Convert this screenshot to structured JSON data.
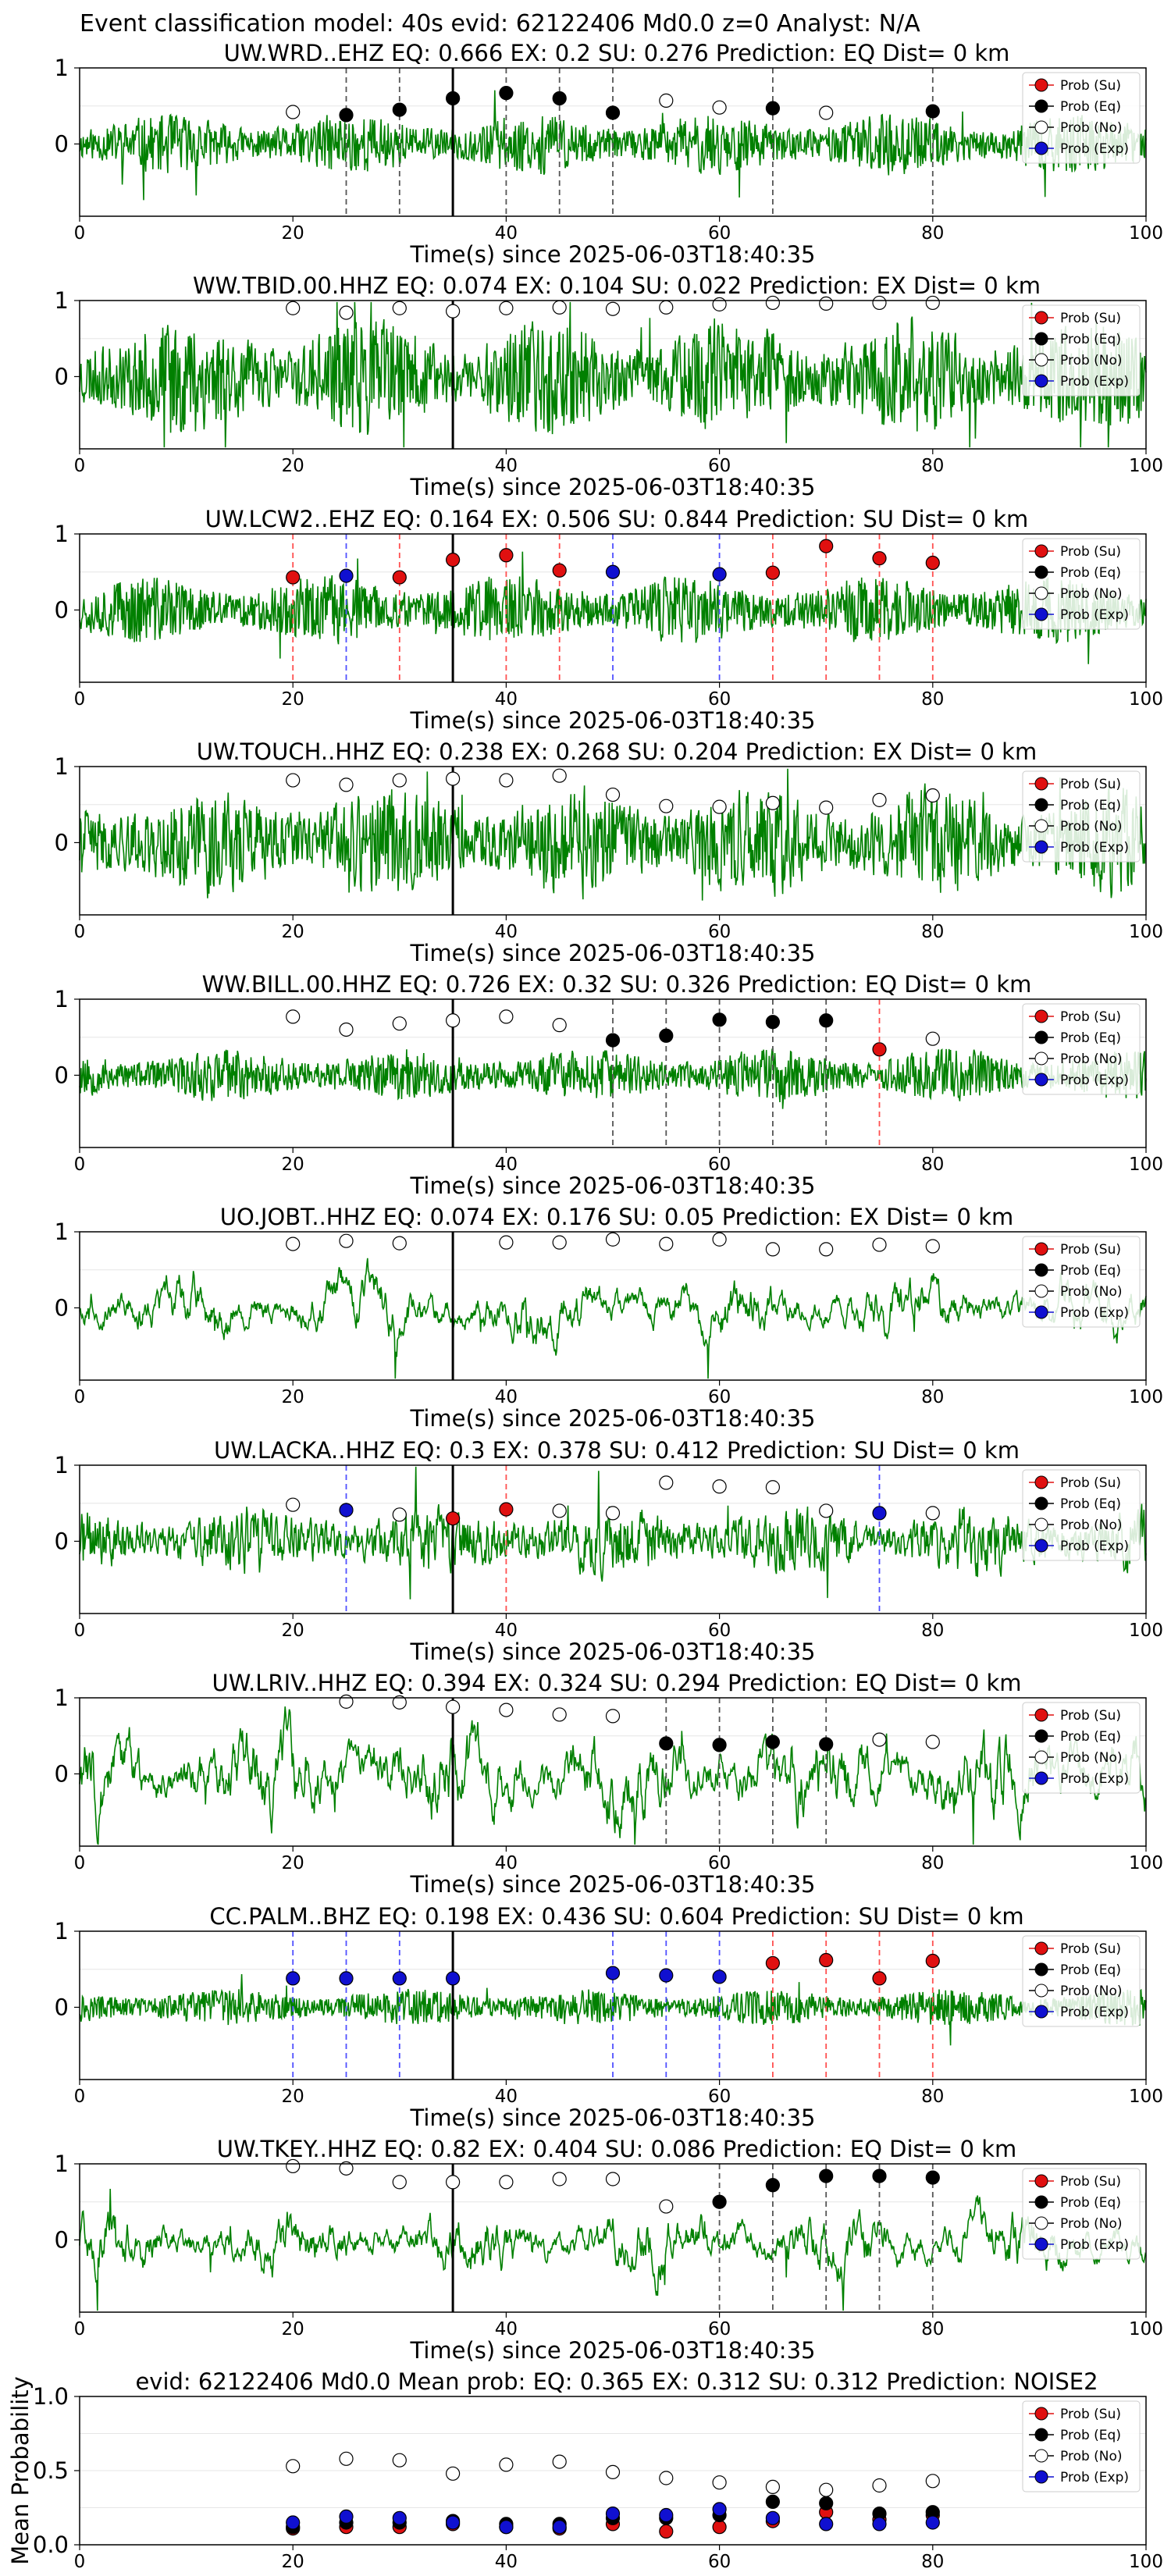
{
  "suptitle": "Event classification model: 40s evid: 62122406 Md0.0 z=0 Analyst: N/A",
  "legend_labels": [
    "Prob (Su)",
    "Prob (Eq)",
    "Prob (No)",
    "Prob (Exp)"
  ],
  "colors": {
    "su": "#e01010",
    "eq": "#000000",
    "no": "#ffffff",
    "exp": "#1010d0",
    "trace": "#008000",
    "su_line": "#ff5050",
    "eq_line": "#555555",
    "exp_line": "#5050ff"
  },
  "chart_data": [
    {
      "type": "line",
      "title": "UW.WRD..EHZ   EQ: 0.666  EX: 0.2  SU: 0.276   Prediction: EQ    Dist= 0 km",
      "xlabel": "Time(s) since 2025-06-03T18:40:35",
      "xlim": [
        0,
        100
      ],
      "xticks": [
        0,
        20,
        40,
        60,
        80,
        100
      ],
      "yticks": [
        0,
        1
      ],
      "onset": 35,
      "amp": 0.32,
      "seed": 11,
      "smooth": 0.1,
      "points": [
        [
          20,
          "no",
          0.42
        ],
        [
          25,
          "eq",
          0.38
        ],
        [
          30,
          "eq",
          0.45
        ],
        [
          35,
          "eq",
          0.6
        ],
        [
          40,
          "eq",
          0.67
        ],
        [
          45,
          "eq",
          0.6
        ],
        [
          50,
          "eq",
          0.41
        ],
        [
          55,
          "no",
          0.57
        ],
        [
          60,
          "no",
          0.48
        ],
        [
          65,
          "eq",
          0.47
        ],
        [
          70,
          "no",
          0.41
        ],
        [
          80,
          "eq",
          0.43
        ]
      ],
      "vlines": [
        [
          25,
          "eq"
        ],
        [
          30,
          "eq"
        ],
        [
          40,
          "eq"
        ],
        [
          45,
          "eq"
        ],
        [
          50,
          "eq"
        ],
        [
          65,
          "eq"
        ],
        [
          80,
          "eq"
        ]
      ]
    },
    {
      "type": "line",
      "title": "WW.TBID.00.HHZ   EQ: 0.074  EX: 0.104  SU: 0.022   Prediction: EX    Dist= 0 km",
      "xlabel": "Time(s) since 2025-06-03T18:40:35",
      "xlim": [
        0,
        100
      ],
      "xticks": [
        0,
        20,
        40,
        60,
        80,
        100
      ],
      "yticks": [
        0,
        1
      ],
      "onset": 35,
      "amp": 0.62,
      "seed": 23,
      "smooth": 0.1,
      "points": [
        [
          20,
          "no",
          0.9
        ],
        [
          25,
          "no",
          0.84
        ],
        [
          30,
          "no",
          0.9
        ],
        [
          35,
          "no",
          0.86
        ],
        [
          40,
          "no",
          0.9
        ],
        [
          45,
          "no",
          0.91
        ],
        [
          50,
          "no",
          0.89
        ],
        [
          55,
          "no",
          0.91
        ],
        [
          60,
          "no",
          0.95
        ],
        [
          65,
          "no",
          0.97
        ],
        [
          70,
          "no",
          0.96
        ],
        [
          75,
          "no",
          0.97
        ],
        [
          80,
          "no",
          0.97
        ]
      ],
      "vlines": []
    },
    {
      "type": "line",
      "title": "UW.LCW2..EHZ   EQ: 0.164  EX: 0.506  SU: 0.844   Prediction: SU    Dist= 0 km",
      "xlabel": "Time(s) since 2025-06-03T18:40:35",
      "xlim": [
        0,
        100
      ],
      "xticks": [
        0,
        20,
        40,
        60,
        80,
        100
      ],
      "yticks": [
        0,
        1
      ],
      "onset": 35,
      "amp": 0.35,
      "seed": 37,
      "smooth": 0.05,
      "points": [
        [
          20,
          "su",
          0.43
        ],
        [
          25,
          "exp",
          0.45
        ],
        [
          30,
          "su",
          0.43
        ],
        [
          35,
          "su",
          0.66
        ],
        [
          40,
          "su",
          0.72
        ],
        [
          45,
          "su",
          0.52
        ],
        [
          50,
          "exp",
          0.5
        ],
        [
          60,
          "exp",
          0.47
        ],
        [
          65,
          "su",
          0.49
        ],
        [
          70,
          "su",
          0.84
        ],
        [
          75,
          "su",
          0.68
        ],
        [
          80,
          "su",
          0.62
        ]
      ],
      "vlines": [
        [
          20,
          "su"
        ],
        [
          25,
          "exp"
        ],
        [
          30,
          "su"
        ],
        [
          40,
          "su"
        ],
        [
          45,
          "su"
        ],
        [
          50,
          "exp"
        ],
        [
          60,
          "exp"
        ],
        [
          65,
          "su"
        ],
        [
          70,
          "su"
        ],
        [
          75,
          "su"
        ],
        [
          80,
          "su"
        ]
      ]
    },
    {
      "type": "line",
      "title": "UW.TOUCH..HHZ   EQ: 0.238  EX: 0.268  SU: 0.204   Prediction: EX    Dist= 0 km",
      "xlabel": "Time(s) since 2025-06-03T18:40:35",
      "xlim": [
        0,
        100
      ],
      "xticks": [
        0,
        20,
        40,
        60,
        80,
        100
      ],
      "yticks": [
        0,
        1
      ],
      "onset": 35,
      "amp": 0.62,
      "seed": 41,
      "smooth": 0.2,
      "points": [
        [
          20,
          "no",
          0.82
        ],
        [
          25,
          "no",
          0.76
        ],
        [
          30,
          "no",
          0.82
        ],
        [
          35,
          "no",
          0.84
        ],
        [
          40,
          "no",
          0.82
        ],
        [
          45,
          "no",
          0.88
        ],
        [
          50,
          "no",
          0.63
        ],
        [
          55,
          "no",
          0.48
        ],
        [
          60,
          "no",
          0.47
        ],
        [
          65,
          "no",
          0.52
        ],
        [
          70,
          "no",
          0.46
        ],
        [
          75,
          "no",
          0.56
        ],
        [
          80,
          "no",
          0.62
        ]
      ],
      "vlines": []
    },
    {
      "type": "line",
      "title": "WW.BILL.00.HHZ   EQ: 0.726  EX: 0.32  SU: 0.326   Prediction: EQ    Dist= 0 km",
      "xlabel": "Time(s) since 2025-06-03T18:40:35",
      "xlim": [
        0,
        100
      ],
      "xticks": [
        0,
        20,
        40,
        60,
        80,
        100
      ],
      "yticks": [
        0,
        1
      ],
      "onset": 35,
      "amp": 0.28,
      "seed": 53,
      "smooth": 0.1,
      "points": [
        [
          20,
          "no",
          0.77
        ],
        [
          25,
          "no",
          0.6
        ],
        [
          30,
          "no",
          0.68
        ],
        [
          35,
          "no",
          0.72
        ],
        [
          40,
          "no",
          0.77
        ],
        [
          45,
          "no",
          0.66
        ],
        [
          50,
          "eq",
          0.46
        ],
        [
          55,
          "eq",
          0.52
        ],
        [
          60,
          "eq",
          0.73
        ],
        [
          65,
          "eq",
          0.7
        ],
        [
          70,
          "eq",
          0.72
        ],
        [
          75,
          "su",
          0.34
        ],
        [
          80,
          "no",
          0.48
        ]
      ],
      "vlines": [
        [
          50,
          "eq"
        ],
        [
          55,
          "eq"
        ],
        [
          60,
          "eq"
        ],
        [
          65,
          "eq"
        ],
        [
          70,
          "eq"
        ],
        [
          75,
          "su"
        ]
      ]
    },
    {
      "type": "line",
      "title": "UO.JOBT..HHZ   EQ: 0.074  EX: 0.176  SU: 0.05   Prediction: EX    Dist= 0 km",
      "xlabel": "Time(s) since 2025-06-03T18:40:35",
      "xlim": [
        0,
        100
      ],
      "xticks": [
        0,
        20,
        40,
        60,
        80,
        100
      ],
      "yticks": [
        0,
        1
      ],
      "onset": 35,
      "amp": 0.5,
      "seed": 67,
      "smooth": 0.9,
      "points": [
        [
          20,
          "no",
          0.84
        ],
        [
          25,
          "no",
          0.88
        ],
        [
          30,
          "no",
          0.85
        ],
        [
          40,
          "no",
          0.86
        ],
        [
          45,
          "no",
          0.86
        ],
        [
          50,
          "no",
          0.9
        ],
        [
          55,
          "no",
          0.84
        ],
        [
          60,
          "no",
          0.9
        ],
        [
          65,
          "no",
          0.77
        ],
        [
          70,
          "no",
          0.77
        ],
        [
          75,
          "no",
          0.83
        ],
        [
          80,
          "no",
          0.81
        ]
      ],
      "vlines": []
    },
    {
      "type": "line",
      "title": "UW.LACKA..HHZ   EQ: 0.3  EX: 0.378  SU: 0.412   Prediction: SU    Dist= 0 km",
      "xlabel": "Time(s) since 2025-06-03T18:40:35",
      "xlim": [
        0,
        100
      ],
      "xticks": [
        0,
        20,
        40,
        60,
        80,
        100
      ],
      "yticks": [
        0,
        1
      ],
      "onset": 35,
      "amp": 0.45,
      "seed": 71,
      "smooth": 0.4,
      "points": [
        [
          20,
          "no",
          0.48
        ],
        [
          25,
          "exp",
          0.41
        ],
        [
          30,
          "no",
          0.35
        ],
        [
          35,
          "su",
          0.3
        ],
        [
          40,
          "su",
          0.42
        ],
        [
          45,
          "no",
          0.4
        ],
        [
          50,
          "no",
          0.37
        ],
        [
          55,
          "no",
          0.77
        ],
        [
          60,
          "no",
          0.72
        ],
        [
          65,
          "no",
          0.71
        ],
        [
          70,
          "no",
          0.4
        ],
        [
          75,
          "exp",
          0.37
        ],
        [
          80,
          "no",
          0.37
        ]
      ],
      "vlines": [
        [
          25,
          "exp"
        ],
        [
          40,
          "su"
        ],
        [
          75,
          "exp"
        ]
      ]
    },
    {
      "type": "line",
      "title": "UW.LRIV..HHZ   EQ: 0.394  EX: 0.324  SU: 0.294   Prediction: EQ    Dist= 0 km",
      "xlabel": "Time(s) since 2025-06-03T18:40:35",
      "xlim": [
        0,
        100
      ],
      "xticks": [
        0,
        20,
        40,
        60,
        80,
        100
      ],
      "yticks": [
        0,
        1
      ],
      "onset": 35,
      "amp": 0.55,
      "seed": 83,
      "smooth": 0.85,
      "points": [
        [
          25,
          "no",
          0.95
        ],
        [
          30,
          "no",
          0.94
        ],
        [
          35,
          "no",
          0.88
        ],
        [
          40,
          "no",
          0.84
        ],
        [
          45,
          "no",
          0.78
        ],
        [
          50,
          "no",
          0.76
        ],
        [
          55,
          "eq",
          0.4
        ],
        [
          60,
          "eq",
          0.38
        ],
        [
          65,
          "eq",
          0.42
        ],
        [
          70,
          "eq",
          0.39
        ],
        [
          75,
          "no",
          0.45
        ],
        [
          80,
          "no",
          0.42
        ]
      ],
      "vlines": [
        [
          55,
          "eq"
        ],
        [
          60,
          "eq"
        ],
        [
          65,
          "eq"
        ],
        [
          70,
          "eq"
        ]
      ]
    },
    {
      "type": "line",
      "title": "CC.PALM..BHZ   EQ: 0.198  EX: 0.436  SU: 0.604   Prediction: SU    Dist= 0 km",
      "xlabel": "Time(s) since 2025-06-03T18:40:35",
      "xlim": [
        0,
        100
      ],
      "xticks": [
        0,
        20,
        40,
        60,
        80,
        100
      ],
      "yticks": [
        0,
        1
      ],
      "onset": 35,
      "amp": 0.18,
      "seed": 97,
      "smooth": 0.0,
      "points": [
        [
          20,
          "exp",
          0.38
        ],
        [
          25,
          "exp",
          0.38
        ],
        [
          30,
          "exp",
          0.38
        ],
        [
          35,
          "exp",
          0.38
        ],
        [
          50,
          "exp",
          0.45
        ],
        [
          55,
          "exp",
          0.42
        ],
        [
          60,
          "exp",
          0.4
        ],
        [
          65,
          "su",
          0.58
        ],
        [
          70,
          "su",
          0.62
        ],
        [
          75,
          "su",
          0.38
        ],
        [
          80,
          "su",
          0.61
        ]
      ],
      "vlines": [
        [
          20,
          "exp"
        ],
        [
          25,
          "exp"
        ],
        [
          30,
          "exp"
        ],
        [
          50,
          "exp"
        ],
        [
          55,
          "exp"
        ],
        [
          60,
          "exp"
        ],
        [
          65,
          "su"
        ],
        [
          70,
          "su"
        ],
        [
          75,
          "su"
        ],
        [
          80,
          "su"
        ]
      ]
    },
    {
      "type": "line",
      "title": "UW.TKEY..HHZ   EQ: 0.82  EX: 0.404  SU: 0.086   Prediction: EQ    Dist= 0 km",
      "xlabel": "Time(s) since 2025-06-03T18:40:35",
      "xlim": [
        0,
        100
      ],
      "xticks": [
        0,
        20,
        40,
        60,
        80,
        100
      ],
      "yticks": [
        0,
        1
      ],
      "onset": 35,
      "amp": 0.55,
      "seed": 101,
      "smooth": 0.9,
      "points": [
        [
          20,
          "no",
          0.97
        ],
        [
          25,
          "no",
          0.94
        ],
        [
          30,
          "no",
          0.76
        ],
        [
          35,
          "no",
          0.76
        ],
        [
          40,
          "no",
          0.76
        ],
        [
          45,
          "no",
          0.8
        ],
        [
          50,
          "no",
          0.8
        ],
        [
          55,
          "no",
          0.44
        ],
        [
          60,
          "eq",
          0.5
        ],
        [
          65,
          "eq",
          0.72
        ],
        [
          70,
          "eq",
          0.84
        ],
        [
          75,
          "eq",
          0.84
        ],
        [
          80,
          "eq",
          0.82
        ]
      ],
      "vlines": [
        [
          60,
          "eq"
        ],
        [
          65,
          "eq"
        ],
        [
          70,
          "eq"
        ],
        [
          75,
          "eq"
        ],
        [
          80,
          "eq"
        ]
      ]
    },
    {
      "type": "scatter",
      "title": "evid: 62122406   Md0.0    Mean prob:   EQ: 0.365  EX: 0.312  SU: 0.312   Prediction: NOISE2",
      "xlabel": "",
      "ylabel": "Mean Probability",
      "xlim": [
        0,
        100
      ],
      "ylim": [
        0,
        1
      ],
      "xticks": [
        0,
        20,
        40,
        60,
        80,
        100
      ],
      "yticks": [
        0,
        0.5,
        1
      ],
      "yticklabels": [
        "0.0",
        "0.5",
        "1.0"
      ],
      "series": [
        {
          "name": "Prob (Su)",
          "cat": "su",
          "x": [
            20,
            25,
            30,
            35,
            40,
            45,
            50,
            55,
            60,
            65,
            70,
            75,
            80
          ],
          "y": [
            0.11,
            0.12,
            0.12,
            0.14,
            0.12,
            0.11,
            0.14,
            0.09,
            0.12,
            0.16,
            0.22,
            0.17,
            0.2
          ]
        },
        {
          "name": "Prob (Eq)",
          "cat": "eq",
          "x": [
            20,
            25,
            30,
            35,
            40,
            45,
            50,
            55,
            60,
            65,
            70,
            75,
            80
          ],
          "y": [
            0.12,
            0.15,
            0.15,
            0.16,
            0.14,
            0.14,
            0.18,
            0.18,
            0.2,
            0.29,
            0.28,
            0.21,
            0.22
          ]
        },
        {
          "name": "Prob (No)",
          "cat": "no",
          "x": [
            20,
            25,
            30,
            35,
            40,
            45,
            50,
            55,
            60,
            65,
            70,
            75,
            80
          ],
          "y": [
            0.53,
            0.58,
            0.57,
            0.48,
            0.54,
            0.56,
            0.49,
            0.45,
            0.42,
            0.39,
            0.37,
            0.4,
            0.43
          ]
        },
        {
          "name": "Prob (Exp)",
          "cat": "exp",
          "x": [
            20,
            25,
            30,
            35,
            40,
            45,
            50,
            55,
            60,
            65,
            70,
            75,
            80
          ],
          "y": [
            0.15,
            0.19,
            0.18,
            0.15,
            0.12,
            0.12,
            0.21,
            0.2,
            0.24,
            0.18,
            0.14,
            0.14,
            0.15
          ]
        }
      ]
    }
  ]
}
